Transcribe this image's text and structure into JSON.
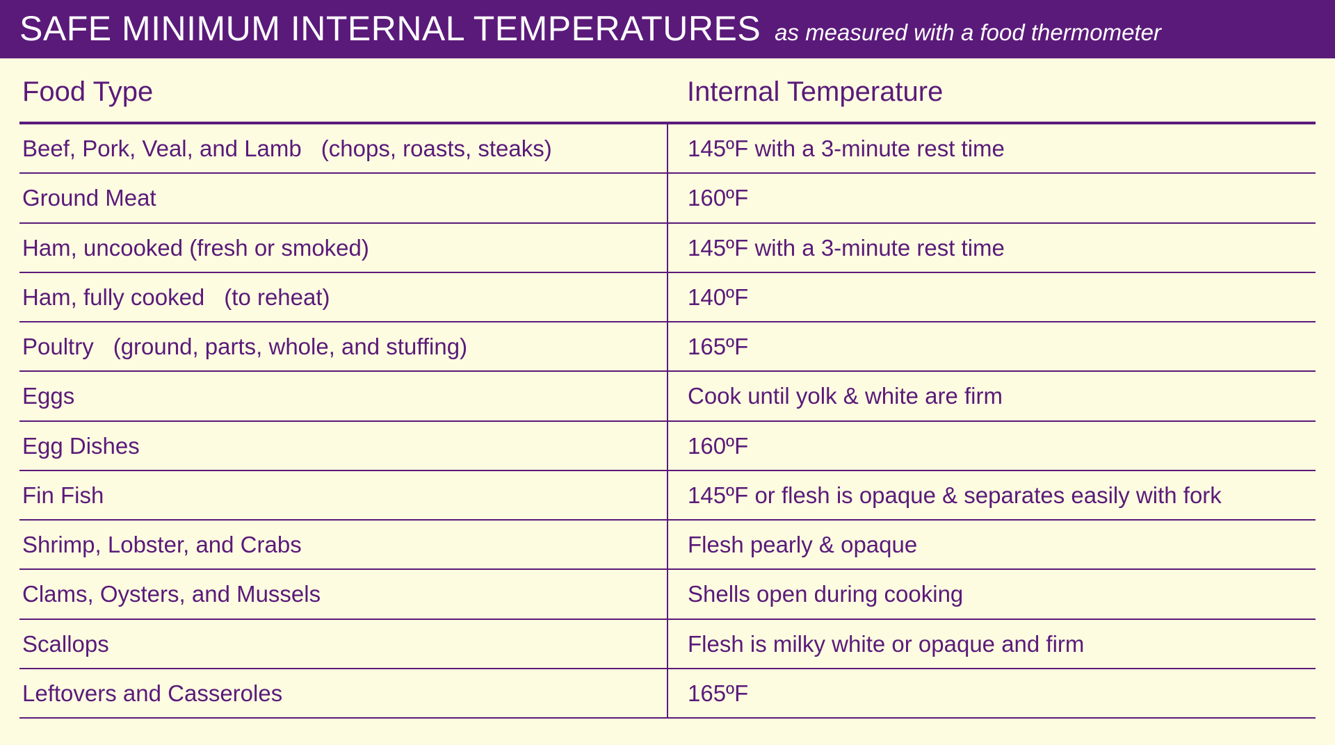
{
  "header": {
    "title": "SAFE MINIMUM INTERNAL TEMPERATURES",
    "subtitle": "as measured with a food thermometer"
  },
  "table": {
    "columns": [
      "Food Type",
      "Internal Temperature"
    ],
    "rows": [
      {
        "food": "Beef, Pork, Veal, and Lamb",
        "detail": "(chops, roasts, steaks)",
        "temp": "145ºF with a 3-minute rest time"
      },
      {
        "food": "Ground Meat",
        "detail": "",
        "temp": "160ºF"
      },
      {
        "food": "Ham, uncooked (fresh or smoked)",
        "detail": "",
        "temp": "145ºF with a 3-minute rest time"
      },
      {
        "food": "Ham, fully cooked",
        "detail": "(to reheat)",
        "temp": "140ºF"
      },
      {
        "food": "Poultry",
        "detail": "(ground, parts, whole, and stuffing)",
        "temp": "165ºF"
      },
      {
        "food": "Eggs",
        "detail": "",
        "temp": "Cook until yolk & white are firm"
      },
      {
        "food": "Egg Dishes",
        "detail": "",
        "temp": "160ºF"
      },
      {
        "food": "Fin Fish",
        "detail": "",
        "temp": "145ºF or flesh is opaque & separates easily with fork"
      },
      {
        "food": "Shrimp, Lobster, and Crabs",
        "detail": "",
        "temp": "Flesh pearly & opaque"
      },
      {
        "food": "Clams, Oysters, and Mussels",
        "detail": "",
        "temp": "Shells open during cooking"
      },
      {
        "food": "Scallops",
        "detail": "",
        "temp": "Flesh is milky white or opaque and firm"
      },
      {
        "food": "Leftovers and Casseroles",
        "detail": "",
        "temp": "165ºF"
      }
    ]
  },
  "styling": {
    "background_color": "#fdfce0",
    "header_background": "#5a1a7a",
    "header_text_color": "#ffffff",
    "body_text_color": "#5a1a7a",
    "border_color": "#5a1a7a",
    "header_title_fontsize": 50,
    "header_subtitle_fontsize": 33,
    "column_header_fontsize": 40,
    "cell_fontsize": 33,
    "header_border_width": 4,
    "row_border_width": 2,
    "font_family": "Arial"
  }
}
